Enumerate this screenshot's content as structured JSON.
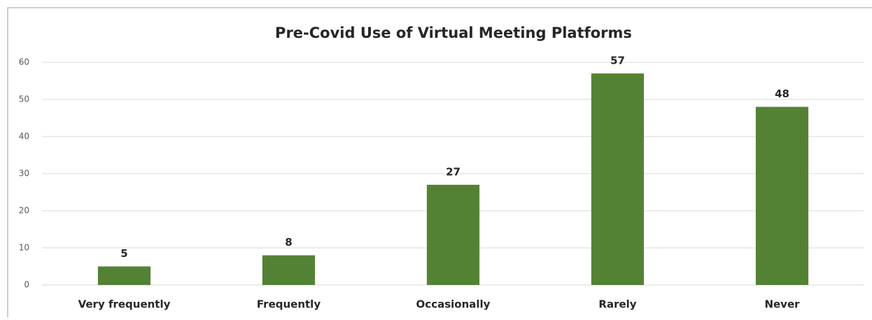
{
  "chart_data": {
    "type": "bar",
    "title": "Pre-Covid Use of Virtual Meeting Platforms",
    "categories": [
      "Very frequently",
      "Frequently",
      "Occasionally",
      "Rarely",
      "Never"
    ],
    "values": [
      5,
      8,
      27,
      57,
      48
    ],
    "color": "#548235",
    "ylim": [
      0,
      60
    ],
    "yticks": [
      0,
      10,
      20,
      30,
      40,
      50,
      60
    ],
    "grid": true
  }
}
